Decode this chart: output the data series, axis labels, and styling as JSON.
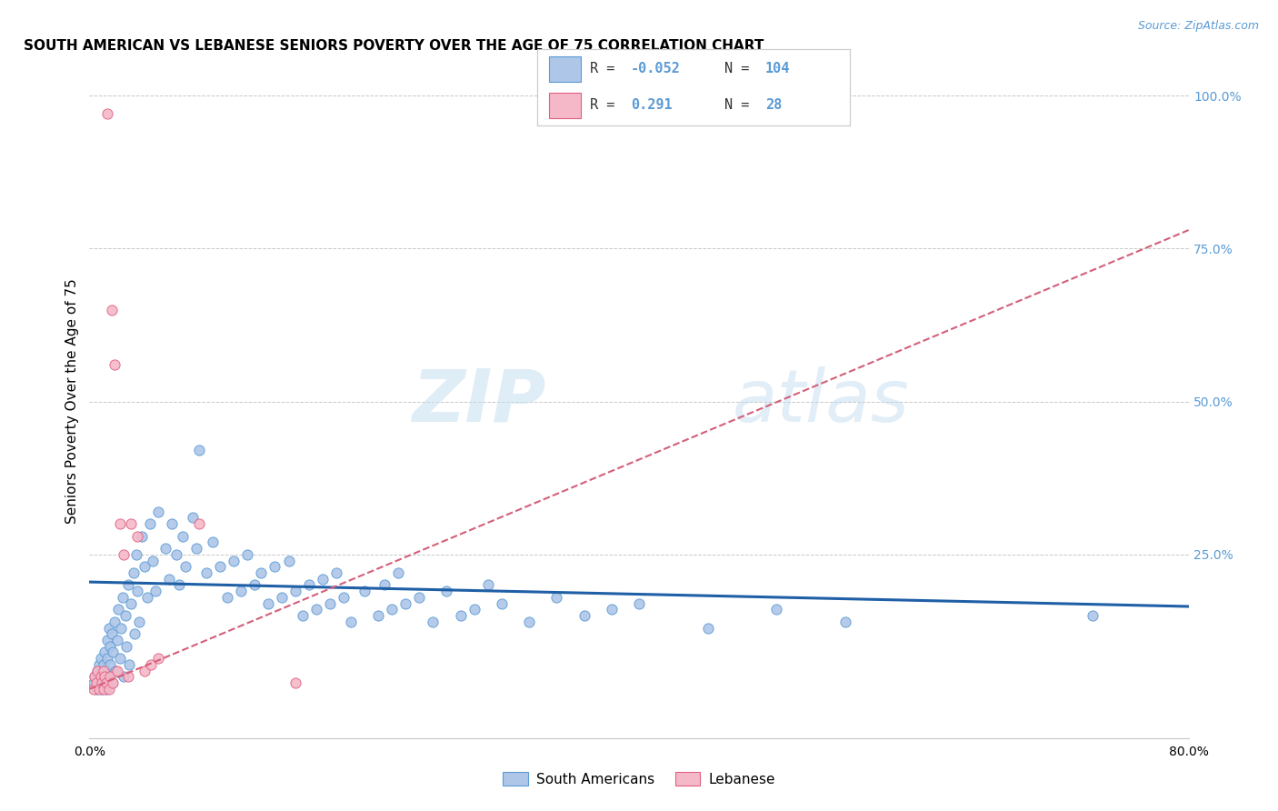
{
  "title": "SOUTH AMERICAN VS LEBANESE SENIORS POVERTY OVER THE AGE OF 75 CORRELATION CHART",
  "source": "Source: ZipAtlas.com",
  "ylabel": "Seniors Poverty Over the Age of 75",
  "xlim": [
    0.0,
    0.8
  ],
  "ylim": [
    -0.05,
    1.05
  ],
  "xticks": [
    0.0,
    0.1,
    0.2,
    0.3,
    0.4,
    0.5,
    0.6,
    0.7,
    0.8
  ],
  "xtick_labels": [
    "0.0%",
    "",
    "",
    "",
    "",
    "",
    "",
    "",
    "80.0%"
  ],
  "ytick_values_right": [
    1.0,
    0.75,
    0.5,
    0.25
  ],
  "ytick_labels_right": [
    "100.0%",
    "75.0%",
    "50.0%",
    "25.0%"
  ],
  "legend_R_south": "-0.052",
  "legend_N_south": "104",
  "legend_R_leb": "0.291",
  "legend_N_leb": "28",
  "south_color": "#aec6e8",
  "leb_color": "#f4b8c8",
  "south_edge": "#5b9bd5",
  "leb_edge": "#e06080",
  "trend_south_color": "#1f5fa6",
  "trend_leb_color": "#d45f7a",
  "watermark_color": "#d8eaf8",
  "background_color": "#ffffff",
  "grid_color": "#c8c8c8",
  "right_tick_color": "#5b9bd5",
  "south_americans_label": "South Americans",
  "lebanese_label": "Lebanese",
  "sa_x": [
    0.003,
    0.004,
    0.005,
    0.006,
    0.007,
    0.007,
    0.008,
    0.008,
    0.009,
    0.009,
    0.01,
    0.01,
    0.011,
    0.011,
    0.012,
    0.012,
    0.013,
    0.013,
    0.014,
    0.014,
    0.015,
    0.015,
    0.016,
    0.016,
    0.017,
    0.018,
    0.019,
    0.02,
    0.021,
    0.022,
    0.023,
    0.024,
    0.025,
    0.026,
    0.027,
    0.028,
    0.029,
    0.03,
    0.032,
    0.033,
    0.034,
    0.035,
    0.036,
    0.038,
    0.04,
    0.042,
    0.044,
    0.046,
    0.048,
    0.05,
    0.055,
    0.058,
    0.06,
    0.063,
    0.065,
    0.068,
    0.07,
    0.075,
    0.078,
    0.08,
    0.085,
    0.09,
    0.095,
    0.1,
    0.105,
    0.11,
    0.115,
    0.12,
    0.125,
    0.13,
    0.135,
    0.14,
    0.145,
    0.15,
    0.155,
    0.16,
    0.165,
    0.17,
    0.175,
    0.18,
    0.185,
    0.19,
    0.2,
    0.21,
    0.215,
    0.22,
    0.225,
    0.23,
    0.24,
    0.25,
    0.26,
    0.27,
    0.28,
    0.29,
    0.3,
    0.32,
    0.34,
    0.36,
    0.38,
    0.4,
    0.45,
    0.5,
    0.55,
    0.73
  ],
  "sa_y": [
    0.04,
    0.05,
    0.03,
    0.06,
    0.04,
    0.07,
    0.05,
    0.08,
    0.06,
    0.03,
    0.05,
    0.07,
    0.04,
    0.09,
    0.06,
    0.03,
    0.08,
    0.11,
    0.05,
    0.13,
    0.07,
    0.1,
    0.04,
    0.12,
    0.09,
    0.14,
    0.06,
    0.11,
    0.16,
    0.08,
    0.13,
    0.18,
    0.05,
    0.15,
    0.1,
    0.2,
    0.07,
    0.17,
    0.22,
    0.12,
    0.25,
    0.19,
    0.14,
    0.28,
    0.23,
    0.18,
    0.3,
    0.24,
    0.19,
    0.32,
    0.26,
    0.21,
    0.3,
    0.25,
    0.2,
    0.28,
    0.23,
    0.31,
    0.26,
    0.42,
    0.22,
    0.27,
    0.23,
    0.18,
    0.24,
    0.19,
    0.25,
    0.2,
    0.22,
    0.17,
    0.23,
    0.18,
    0.24,
    0.19,
    0.15,
    0.2,
    0.16,
    0.21,
    0.17,
    0.22,
    0.18,
    0.14,
    0.19,
    0.15,
    0.2,
    0.16,
    0.22,
    0.17,
    0.18,
    0.14,
    0.19,
    0.15,
    0.16,
    0.2,
    0.17,
    0.14,
    0.18,
    0.15,
    0.16,
    0.17,
    0.13,
    0.16,
    0.14,
    0.15
  ],
  "lb_x": [
    0.003,
    0.004,
    0.005,
    0.006,
    0.007,
    0.008,
    0.009,
    0.01,
    0.01,
    0.011,
    0.012,
    0.013,
    0.014,
    0.015,
    0.016,
    0.017,
    0.018,
    0.02,
    0.022,
    0.025,
    0.028,
    0.03,
    0.035,
    0.04,
    0.045,
    0.05,
    0.08,
    0.15
  ],
  "lb_y": [
    0.03,
    0.05,
    0.04,
    0.06,
    0.03,
    0.05,
    0.04,
    0.06,
    0.03,
    0.05,
    0.04,
    0.97,
    0.03,
    0.05,
    0.65,
    0.04,
    0.56,
    0.06,
    0.3,
    0.25,
    0.05,
    0.3,
    0.28,
    0.06,
    0.07,
    0.08,
    0.3,
    0.04
  ]
}
